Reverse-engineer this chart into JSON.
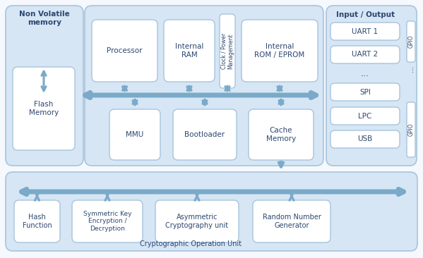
{
  "bg_color": "#f5f8fc",
  "outer_bg": "#d6e6f5",
  "white_fill": "#ffffff",
  "arrow_color": "#7aaac8",
  "text_color": "#2c4770",
  "border_color": "#a8c4dc",
  "nvm_title": "Non Volatile\nmemory",
  "io_title": "Input / Output",
  "crypto_label": "Cryptographic Operation Unit",
  "flash_label": "Flash\nMemory",
  "processor_label": "Processor",
  "internal_ram_label": "Internal\nRAM",
  "clock_label": "Clock / Power\nManagement",
  "internal_rom_label": "Internal\nROM / EPROM",
  "mmu_label": "MMU",
  "bootloader_label": "Bootloader",
  "cache_label": "Cache\nMemory",
  "hash_label": "Hash\nFunction",
  "symkey_label": "Symmetric Key\nEncryption /\nDecryption",
  "asymkey_label": "Asymmetric\nCryptography unit",
  "rng_label": "Random Number\nGenerator",
  "uart1_label": "UART 1",
  "uart2_label": "UART 2",
  "spi_label": "SPI",
  "lpc_label": "LPC",
  "usb_label": "USB",
  "gpio_label": "GPIO"
}
